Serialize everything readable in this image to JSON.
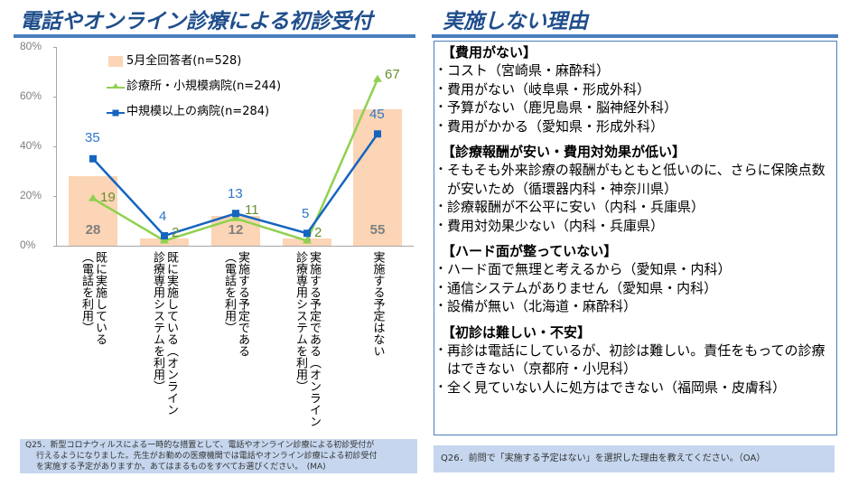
{
  "left_panel": {
    "title": "電話やオンライン診療による初診受付",
    "question": {
      "lines": [
        "Q25．新型コロナウィルスによる一時的な措置として、電話やオンライン診療による初診受付が",
        "行えるようになりました。先生がお勤めの医療機関では電話やオンライン診療による初診受付",
        "を実施する予定がありますか。あてはまるものをすべてお選びください。　(MA)"
      ]
    }
  },
  "right_panel": {
    "title": "実施しない理由",
    "sections": [
      {
        "heading": "【費用がない】",
        "items": [
          "コスト（宮崎県・麻酔科）",
          "費用がない（岐阜県・形成外科）",
          "予算がない（鹿児島県・脳神経外科）",
          "費用がかかる（愛知県・形成外科）"
        ]
      },
      {
        "heading": "【診療報酬が安い・費用対効果が低い】",
        "items": [
          "そもそも外来診療の報酬がもともと低いのに、さらに保険点数が安いため（循環器内科・神奈川県）",
          "診療報酬が不公平に安い（内科・兵庫県）",
          "費用対効果少ない（内科・兵庫県）"
        ]
      },
      {
        "heading": "【ハード面が整っていない】",
        "items": [
          "ハード面で無理と考えるから（愛知県・内科）",
          "通信システムがありません（愛知県・内科）",
          "設備が無い（北海道・麻酔科）"
        ]
      },
      {
        "heading": "【初診は難しい・不安】",
        "items": [
          "再診は電話にしているが、初診は難しい。責任をもっての診療はできない（京都府・小児科）",
          "全く見ていない人に処方はできない（福岡県・皮膚科）"
        ]
      }
    ],
    "question": "Q26．前問で「実施する予定はない」を選択した理由を教えてください。（OA）"
  },
  "colors": {
    "title": "#1f4e8c",
    "rule": "#4a7ebb",
    "bar": "#fbd5b5",
    "bar_label": "#7f7f7f",
    "green_line": "#8fd14f",
    "green_label": "#6a8f2f",
    "blue_line": "#1565c0",
    "blue_label": "#2e75c6",
    "question_bg": "#c5d6ee"
  },
  "chart_data": {
    "type": "bar",
    "title": "電話やオンライン診療による初診受付",
    "xlabel": "",
    "ylabel": "",
    "ylim": [
      0,
      80
    ],
    "yticks": [
      "0%",
      "20%",
      "40%",
      "60%",
      "80%"
    ],
    "grid": false,
    "legend_position": "upper-left-inside",
    "categories": [
      "（電話を利用）既に実施している",
      "（オンライン診療専用システムを利用）既に実施している",
      "（電話を利用）実施する予定である",
      "（オンライン診療専用システムを利用）実施する予定である",
      "実施する予定はない"
    ],
    "category_labels_vertical": [
      [
        "既に実施している",
        "（電話を利用）"
      ],
      [
        "既に実施している（オンライン",
        "診療専用システムを利用）"
      ],
      [
        "実施する予定である",
        "（電話を利用）"
      ],
      [
        "実施する予定である（オンライン",
        "診療専用システムを利用）"
      ],
      [
        "実施する予定はない"
      ]
    ],
    "series": [
      {
        "name": "5月全回答者(n=528)",
        "type": "bar",
        "values": [
          28,
          3,
          12,
          3,
          55
        ]
      },
      {
        "name": "診療所・小規模病院(n=244)",
        "type": "line",
        "marker": "triangle",
        "values": [
          19,
          2,
          11,
          2,
          67
        ]
      },
      {
        "name": "中規模以上の病院(n=284)",
        "type": "line",
        "marker": "square",
        "values": [
          35,
          4,
          13,
          5,
          45
        ]
      }
    ]
  }
}
